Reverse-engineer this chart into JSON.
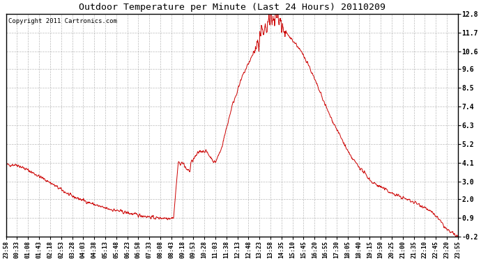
{
  "title": "Outdoor Temperature per Minute (Last 24 Hours) 20110209",
  "copyright_text": "Copyright 2011 Cartronics.com",
  "line_color": "#cc0000",
  "background_color": "#ffffff",
  "grid_color": "#aaaaaa",
  "ylim": [
    -0.2,
    12.8
  ],
  "yticks": [
    -0.2,
    0.9,
    2.0,
    3.0,
    4.1,
    5.2,
    6.3,
    7.4,
    8.5,
    9.6,
    10.6,
    11.7,
    12.8
  ],
  "xtick_labels": [
    "23:58",
    "00:33",
    "01:08",
    "01:43",
    "02:18",
    "02:53",
    "03:28",
    "04:03",
    "04:38",
    "05:13",
    "05:48",
    "06:23",
    "06:58",
    "07:33",
    "08:08",
    "08:43",
    "09:18",
    "09:53",
    "10:28",
    "11:03",
    "11:38",
    "12:13",
    "12:48",
    "13:23",
    "13:58",
    "14:35",
    "15:10",
    "15:45",
    "16:20",
    "16:55",
    "17:30",
    "18:05",
    "18:40",
    "19:15",
    "19:50",
    "20:25",
    "21:00",
    "21:35",
    "22:10",
    "22:45",
    "23:20",
    "23:55"
  ]
}
